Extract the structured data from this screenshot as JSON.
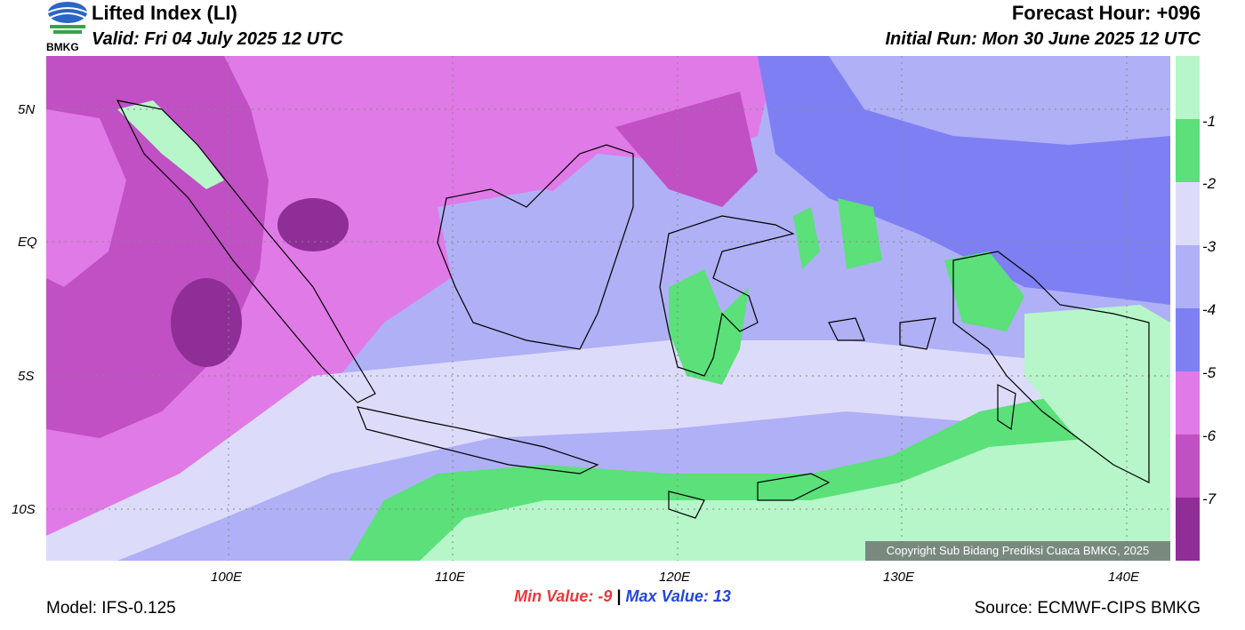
{
  "header": {
    "title": "Lifted Index (LI)",
    "valid": "Valid: Fri 04 July 2025 12 UTC",
    "forecast_hour": "Forecast Hour: +096",
    "initial_run": "Initial Run: Mon 30 June 2025 12 UTC",
    "logo_text": "BMKG"
  },
  "axes": {
    "lat_labels": [
      "5N",
      "EQ",
      "5S",
      "10S"
    ],
    "lon_labels": [
      "100E",
      "110E",
      "120E",
      "130E",
      "140E"
    ]
  },
  "colorbar": {
    "labels": [
      "-1",
      "-2",
      "-3",
      "-4",
      "-5",
      "-6",
      "-7"
    ],
    "colors": [
      "#b6f6c9",
      "#5be07a",
      "#dcdcfa",
      "#b0b0f6",
      "#7f7ff4",
      "#e07ae6",
      "#c050c4",
      "#8e2e96"
    ]
  },
  "copyright": "Copyright Sub Bidang Prediksi Cuaca BMKG, 2025",
  "footer": {
    "model": "Model: IFS-0.125",
    "min_label": "Min Value:  -9",
    "max_label": "Max Value:  13",
    "separator": "|",
    "source": "Source: ECMWF-CIPS BMKG"
  }
}
